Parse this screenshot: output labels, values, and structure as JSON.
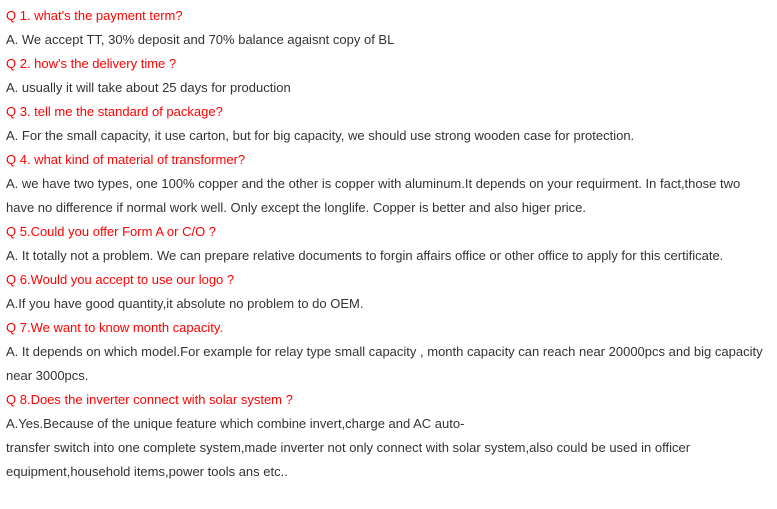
{
  "faq": [
    {
      "q": "Q 1. what's the payment term?",
      "a": [
        "A. We accept TT, 30% deposit and 70% balance agaisnt copy of BL"
      ]
    },
    {
      "q": "Q 2. how's the delivery time ?",
      "a": [
        "A. usually it will take about 25 days for production"
      ]
    },
    {
      "q": "Q 3. tell me the standard of package?",
      "a": [
        "A. For the small capacity, it use carton, but for big capacity, we should use strong wooden case for protection."
      ]
    },
    {
      "q": "Q 4. what kind of material of transformer?",
      "a": [
        "A. we have two types, one 100% copper and the other is copper with aluminum.It depends on your requirment. In fact,those two have no difference if normal work well. Only except the longlife. Copper is better and also higer price."
      ]
    },
    {
      "q": "Q 5.Could you offer Form A or C/O ?",
      "a": [
        "A. It totally not a problem. We can prepare relative documents to forgin affairs office or other office to apply for this certificate."
      ]
    },
    {
      "q": "Q 6.Would you accept to use our logo ?",
      "a": [
        "A.If you have good quantity,it absolute no problem to do OEM."
      ]
    },
    {
      "q": "Q 7.We want to know month capacity.",
      "a": [
        "A. It depends on which model.For example for relay type small capacity , month capacity can reach near 20000pcs   and big capacity near 3000pcs."
      ]
    },
    {
      "q": "Q 8.Does the inverter connect with solar system ?",
      "a": [
        "A.Yes.Because of the unique feature which combine invert,charge and AC auto-",
        "transfer switch into one complete system,made inverter not only connect with solar system,also could be used in officer  equipment,household items,power tools ans etc.."
      ]
    }
  ]
}
